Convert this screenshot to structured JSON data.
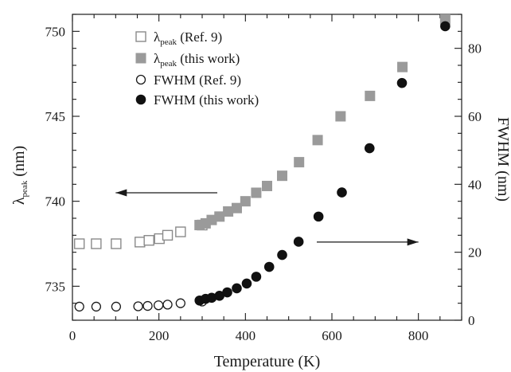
{
  "chart_data": {
    "type": "scatter",
    "xlabel": "Temperature (K)",
    "ylabel_left": {
      "base": "λ",
      "sub": "peak",
      "rest": " (nm)"
    },
    "ylabel_right": "FWHM (nm)",
    "xlim": [
      0,
      900
    ],
    "ylim_left": [
      733,
      751
    ],
    "ylim_right": [
      0,
      90
    ],
    "xticks": [
      0,
      200,
      400,
      600,
      800
    ],
    "yticks_left": [
      735,
      740,
      745,
      750
    ],
    "yticks_right": [
      0,
      20,
      40,
      60,
      80
    ],
    "legend_position": "top-left",
    "series": [
      {
        "key": "lp_ref9",
        "name": {
          "base": "λ",
          "sub": "peak",
          "rest": " (Ref. 9)"
        },
        "axis": "left",
        "marker": "square-open",
        "color": "#8a8a8a",
        "x": [
          16,
          55,
          101,
          156,
          177,
          201,
          220,
          250,
          300
        ],
        "y": [
          737.5,
          737.5,
          737.5,
          737.6,
          737.7,
          737.8,
          738.0,
          738.2,
          738.6
        ]
      },
      {
        "key": "lp_this",
        "name": {
          "base": "λ",
          "sub": "peak",
          "rest": " (this work)"
        },
        "axis": "left",
        "marker": "square-filled",
        "color": "#9a9a9a",
        "x": [
          294,
          308,
          322,
          340,
          360,
          380,
          400,
          425,
          450,
          485,
          524,
          567,
          620,
          688,
          763,
          862
        ],
        "y": [
          738.6,
          738.7,
          738.9,
          739.1,
          739.4,
          739.6,
          740.0,
          740.5,
          740.9,
          741.5,
          742.3,
          743.6,
          745.0,
          746.2,
          747.9,
          750.7
        ]
      },
      {
        "key": "fwhm_ref9",
        "name": "FWHM (Ref. 9)",
        "axis": "right",
        "marker": "circle-open",
        "color": "#1a1a1a",
        "x": [
          16,
          55,
          101,
          152,
          174,
          199,
          220,
          250,
          300
        ],
        "y": [
          4.0,
          4.0,
          4.0,
          4.1,
          4.2,
          4.4,
          4.6,
          5.0,
          5.5
        ]
      },
      {
        "key": "fwhm_this",
        "name": "FWHM (this work)",
        "axis": "right",
        "marker": "circle-filled",
        "color": "#111111",
        "x": [
          294,
          308,
          322,
          340,
          358,
          380,
          403,
          425,
          455,
          485,
          523,
          569,
          623,
          687,
          762,
          862
        ],
        "y": [
          5.8,
          6.3,
          6.6,
          7.2,
          8.2,
          9.4,
          10.8,
          12.8,
          15.7,
          19.2,
          23.1,
          30.5,
          37.6,
          50.6,
          69.8,
          86.5
        ]
      }
    ],
    "annotations": [
      {
        "type": "arrow",
        "direction": "left",
        "axis": "left",
        "from": [
          335,
          740.5
        ],
        "to": [
          100,
          740.5
        ]
      },
      {
        "type": "arrow",
        "direction": "right",
        "axis": "right",
        "from": [
          565,
          23
        ],
        "to": [
          800,
          23
        ]
      }
    ]
  }
}
